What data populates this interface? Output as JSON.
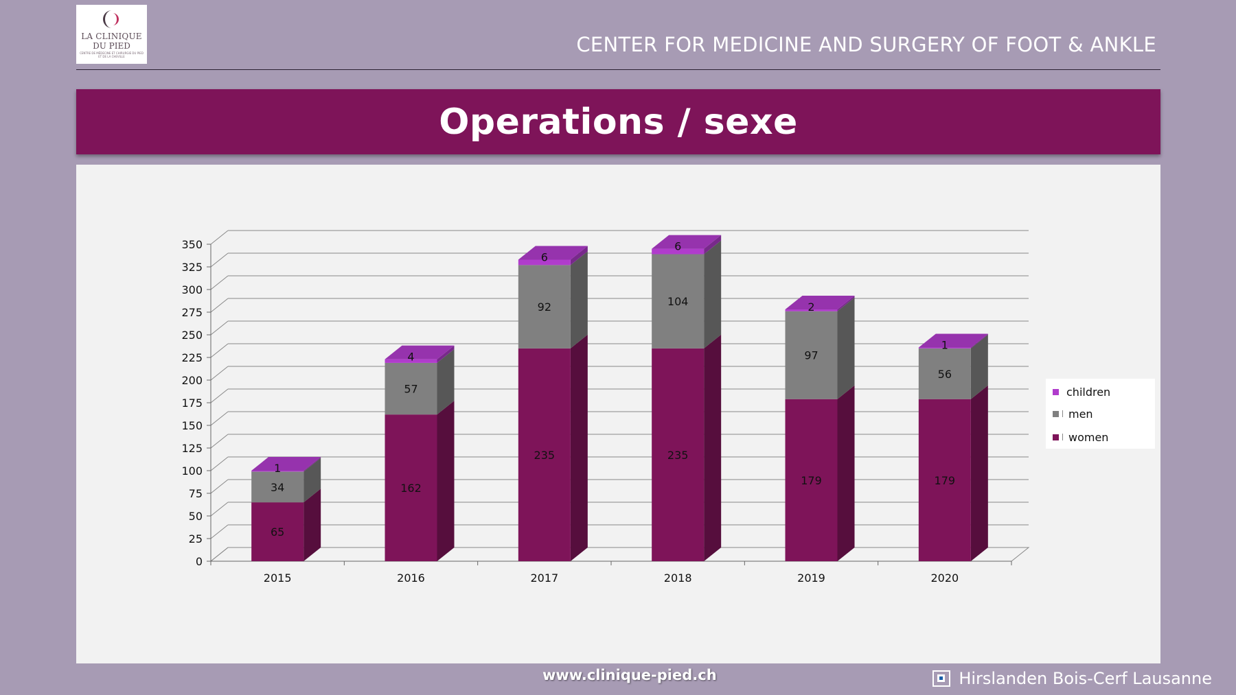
{
  "header": {
    "logo_line1": "LA CLINIQUE",
    "logo_line2": "DU PIED",
    "logo_subtitle": "CENTRE DE MÉDECINE ET CHIRURGIE DU PIED ET DE LA CHEVILLE",
    "title": "CENTER FOR MEDICINE AND SURGERY OF FOOT & ANKLE"
  },
  "slide": {
    "title": "Operations / sexe"
  },
  "footer": {
    "url": "www.clinique-pied.ch",
    "brand": "Hirslanden Bois-Cerf Lausanne"
  },
  "colors": {
    "women": "#7e1459",
    "men": "#808080",
    "children": "#b03ccc",
    "banner": "#7e1459",
    "background": "#a79bb4"
  },
  "chart_data": {
    "type": "bar",
    "stacked": true,
    "style": "3d",
    "title": "Operations / sexe",
    "xlabel": "",
    "ylabel": "",
    "categories": [
      "2015",
      "2016",
      "2017",
      "2018",
      "2019",
      "2020"
    ],
    "series": [
      {
        "name": "women",
        "values": [
          65,
          162,
          235,
          235,
          179,
          179
        ]
      },
      {
        "name": "men",
        "values": [
          34,
          57,
          92,
          104,
          97,
          56
        ]
      },
      {
        "name": "children",
        "values": [
          1,
          4,
          6,
          6,
          2,
          1
        ]
      }
    ],
    "legend_order": [
      "children",
      "men",
      "women"
    ],
    "ylim": [
      0,
      350
    ],
    "yticks": [
      0,
      25,
      50,
      75,
      100,
      125,
      150,
      175,
      200,
      225,
      250,
      275,
      300,
      325,
      350
    ],
    "grid": true,
    "legend_position": "right"
  }
}
